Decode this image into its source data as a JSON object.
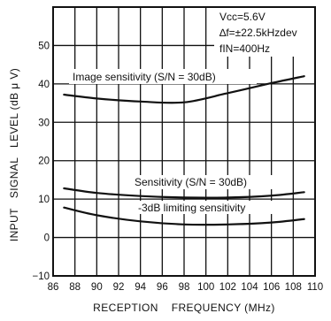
{
  "chart_data": {
    "type": "line",
    "xlabel": "RECEPTION    FREQUENCY (MHz)",
    "ylabel": "INPUT   SIGNAL   LEVEL (dB μ V)",
    "xlim": [
      86,
      110
    ],
    "ylim": [
      -10,
      60
    ],
    "x_ticks": [
      86,
      88,
      90,
      92,
      94,
      96,
      98,
      100,
      102,
      104,
      106,
      108,
      110
    ],
    "y_ticks": [
      -10,
      0,
      10,
      20,
      30,
      40,
      50
    ],
    "x_tick_labels": [
      "86",
      "88",
      "90",
      "92",
      "94",
      "96",
      "98",
      "100",
      "102",
      "104",
      "106",
      "108",
      "110"
    ],
    "y_tick_labels": [
      "−10",
      "0",
      "10",
      "20",
      "30",
      "40",
      "50"
    ],
    "grid": true,
    "conditions": [
      "Vcc=5.6V",
      "∆f=±22.5kHzdev",
      "fIN=400Hz"
    ],
    "series": [
      {
        "name": "Image sensitivity (S/N = 30dB)",
        "x": [
          87,
          90,
          94,
          98,
          102,
          106,
          109
        ],
        "y": [
          37.2,
          36.2,
          35.4,
          35.2,
          37.6,
          40.2,
          42.0
        ]
      },
      {
        "name": "Sensitivity (S/N = 30dB)",
        "x": [
          87,
          90,
          94,
          98,
          102,
          106,
          109
        ],
        "y": [
          12.8,
          11.6,
          10.8,
          10.4,
          10.4,
          10.9,
          11.8
        ]
      },
      {
        "name": "-3dB limiting sensitivity",
        "x": [
          87,
          90,
          94,
          98,
          102,
          106,
          109
        ],
        "y": [
          7.8,
          5.8,
          4.2,
          3.4,
          3.4,
          3.9,
          4.8
        ]
      }
    ]
  }
}
